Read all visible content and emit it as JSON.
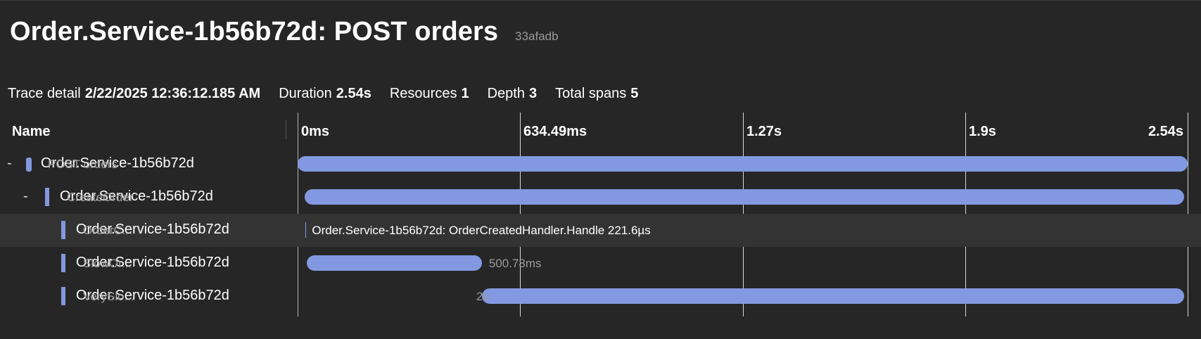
{
  "header": {
    "title": "Order.Service-1b56b72d: POST orders",
    "trace_id": "33afadb"
  },
  "summary": {
    "trace_detail_label": "Trace detail",
    "trace_detail_value": "2/22/2025 12:36:12.185 AM",
    "duration_label": "Duration",
    "duration_value": "2.54s",
    "resources_label": "Resources",
    "resources_value": "1",
    "depth_label": "Depth",
    "depth_value": "3",
    "total_spans_label": "Total spans",
    "total_spans_value": "5"
  },
  "grid": {
    "name_header": "Name",
    "ticks": [
      "0ms",
      "634.49ms",
      "1.27s",
      "1.9s",
      "2.54s"
    ]
  },
  "spans": [
    {
      "toggle": "-",
      "service": "Order.Service-1b56b72d",
      "operation": "POST orders",
      "start_fraction": 0.0,
      "end_fraction": 1.0,
      "bar_label": ""
    },
    {
      "toggle": "-",
      "service": "Order.Service-1b56b72d",
      "operation": "CreateOrder",
      "start_fraction": 0.008,
      "end_fraction": 0.996,
      "bar_label": ""
    },
    {
      "toggle": "",
      "service": "Order.Service-1b56b72d",
      "operation": "OrderC...",
      "start_fraction": 0.009,
      "end_fraction": 0.0091,
      "bar_label": "Order.Service-1b56b72d: OrderCreatedHandler.Handle 221.6µs"
    },
    {
      "toggle": "",
      "service": "Order.Service-1b56b72d",
      "operation": "SlowOr...",
      "start_fraction": 0.01,
      "end_fraction": 0.207,
      "bar_label": "500.78ms"
    },
    {
      "toggle": "",
      "service": "Order.Service-1b56b72d",
      "operation": "VerySlo...",
      "start_fraction": 0.207,
      "end_fraction": 0.996,
      "bar_label": "2s"
    }
  ],
  "colors": {
    "span_bar": "#8299e2",
    "background": "#262626",
    "selected_row": "#333333"
  }
}
